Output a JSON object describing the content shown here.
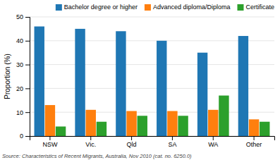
{
  "chart_data": {
    "type": "bar",
    "categories": [
      "NSW",
      "Vic.",
      "Qld",
      "SA",
      "WA",
      "Other"
    ],
    "series": [
      {
        "name": "Bachelor degree or higher",
        "values": [
          46,
          45,
          44,
          40,
          35,
          42
        ]
      },
      {
        "name": "Advanced diploma/Diploma",
        "values": [
          13,
          11,
          10.5,
          10.5,
          11,
          7
        ]
      },
      {
        "name": "Certificate",
        "values": [
          4,
          6,
          8.5,
          8.5,
          17,
          6
        ]
      }
    ],
    "ylabel": "Proportion (%)",
    "ylim": [
      0,
      50
    ],
    "yticks": [
      0,
      10,
      20,
      30,
      40,
      50
    ],
    "grid": true,
    "legend": "upper right",
    "annotations": [
      "Source: Characteristics of Recent Migrants, Australia, Nov 2010 (cat. no. 6250.0)"
    ]
  }
}
